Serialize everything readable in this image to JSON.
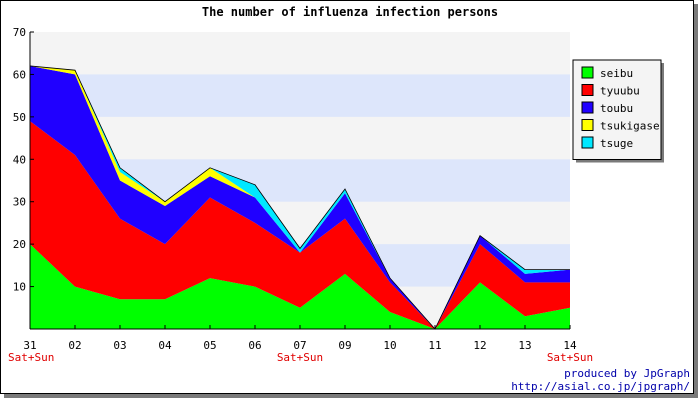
{
  "chart_data": {
    "type": "area",
    "stacked": true,
    "title": "The number of influenza infection persons",
    "x": [
      "31",
      "02",
      "03",
      "04",
      "05",
      "06",
      "07",
      "09",
      "10",
      "11",
      "12",
      "13",
      "14"
    ],
    "x_annotations": [
      {
        "x": "31",
        "text": "Sat+Sun"
      },
      {
        "x": "07",
        "text": "Sat+Sun"
      },
      {
        "x": "14",
        "text": "Sat+Sun"
      }
    ],
    "ylim": [
      0,
      70
    ],
    "yticks": [
      10,
      20,
      30,
      40,
      50,
      60,
      70
    ],
    "series": [
      {
        "name": "seibu",
        "color": "#00ff00",
        "values": [
          20,
          10,
          7,
          7,
          12,
          10,
          5,
          13,
          4,
          0,
          11,
          3,
          5
        ]
      },
      {
        "name": "tyuubu",
        "color": "#ff0000",
        "values": [
          29,
          31,
          19,
          13,
          19,
          15,
          13,
          13,
          7,
          0,
          9,
          8,
          6
        ]
      },
      {
        "name": "toubu",
        "color": "#2000ff",
        "values": [
          13,
          19,
          9,
          9,
          5,
          6,
          0,
          6,
          1,
          0,
          2,
          2,
          3
        ]
      },
      {
        "name": "tsukigase",
        "color": "#ffff00",
        "values": [
          0,
          1,
          2,
          1,
          2,
          0,
          0,
          0,
          0,
          0,
          0,
          0,
          0
        ]
      },
      {
        "name": "tsuge",
        "color": "#00e8ff",
        "values": [
          0,
          0,
          1,
          0,
          0,
          3,
          1,
          1,
          0,
          0,
          0,
          1,
          0
        ]
      }
    ],
    "legend_position": "right",
    "grid": true
  },
  "footer": {
    "line1": "produced by JpGraph",
    "line2": "http://asial.co.jp/jpgraph/"
  }
}
